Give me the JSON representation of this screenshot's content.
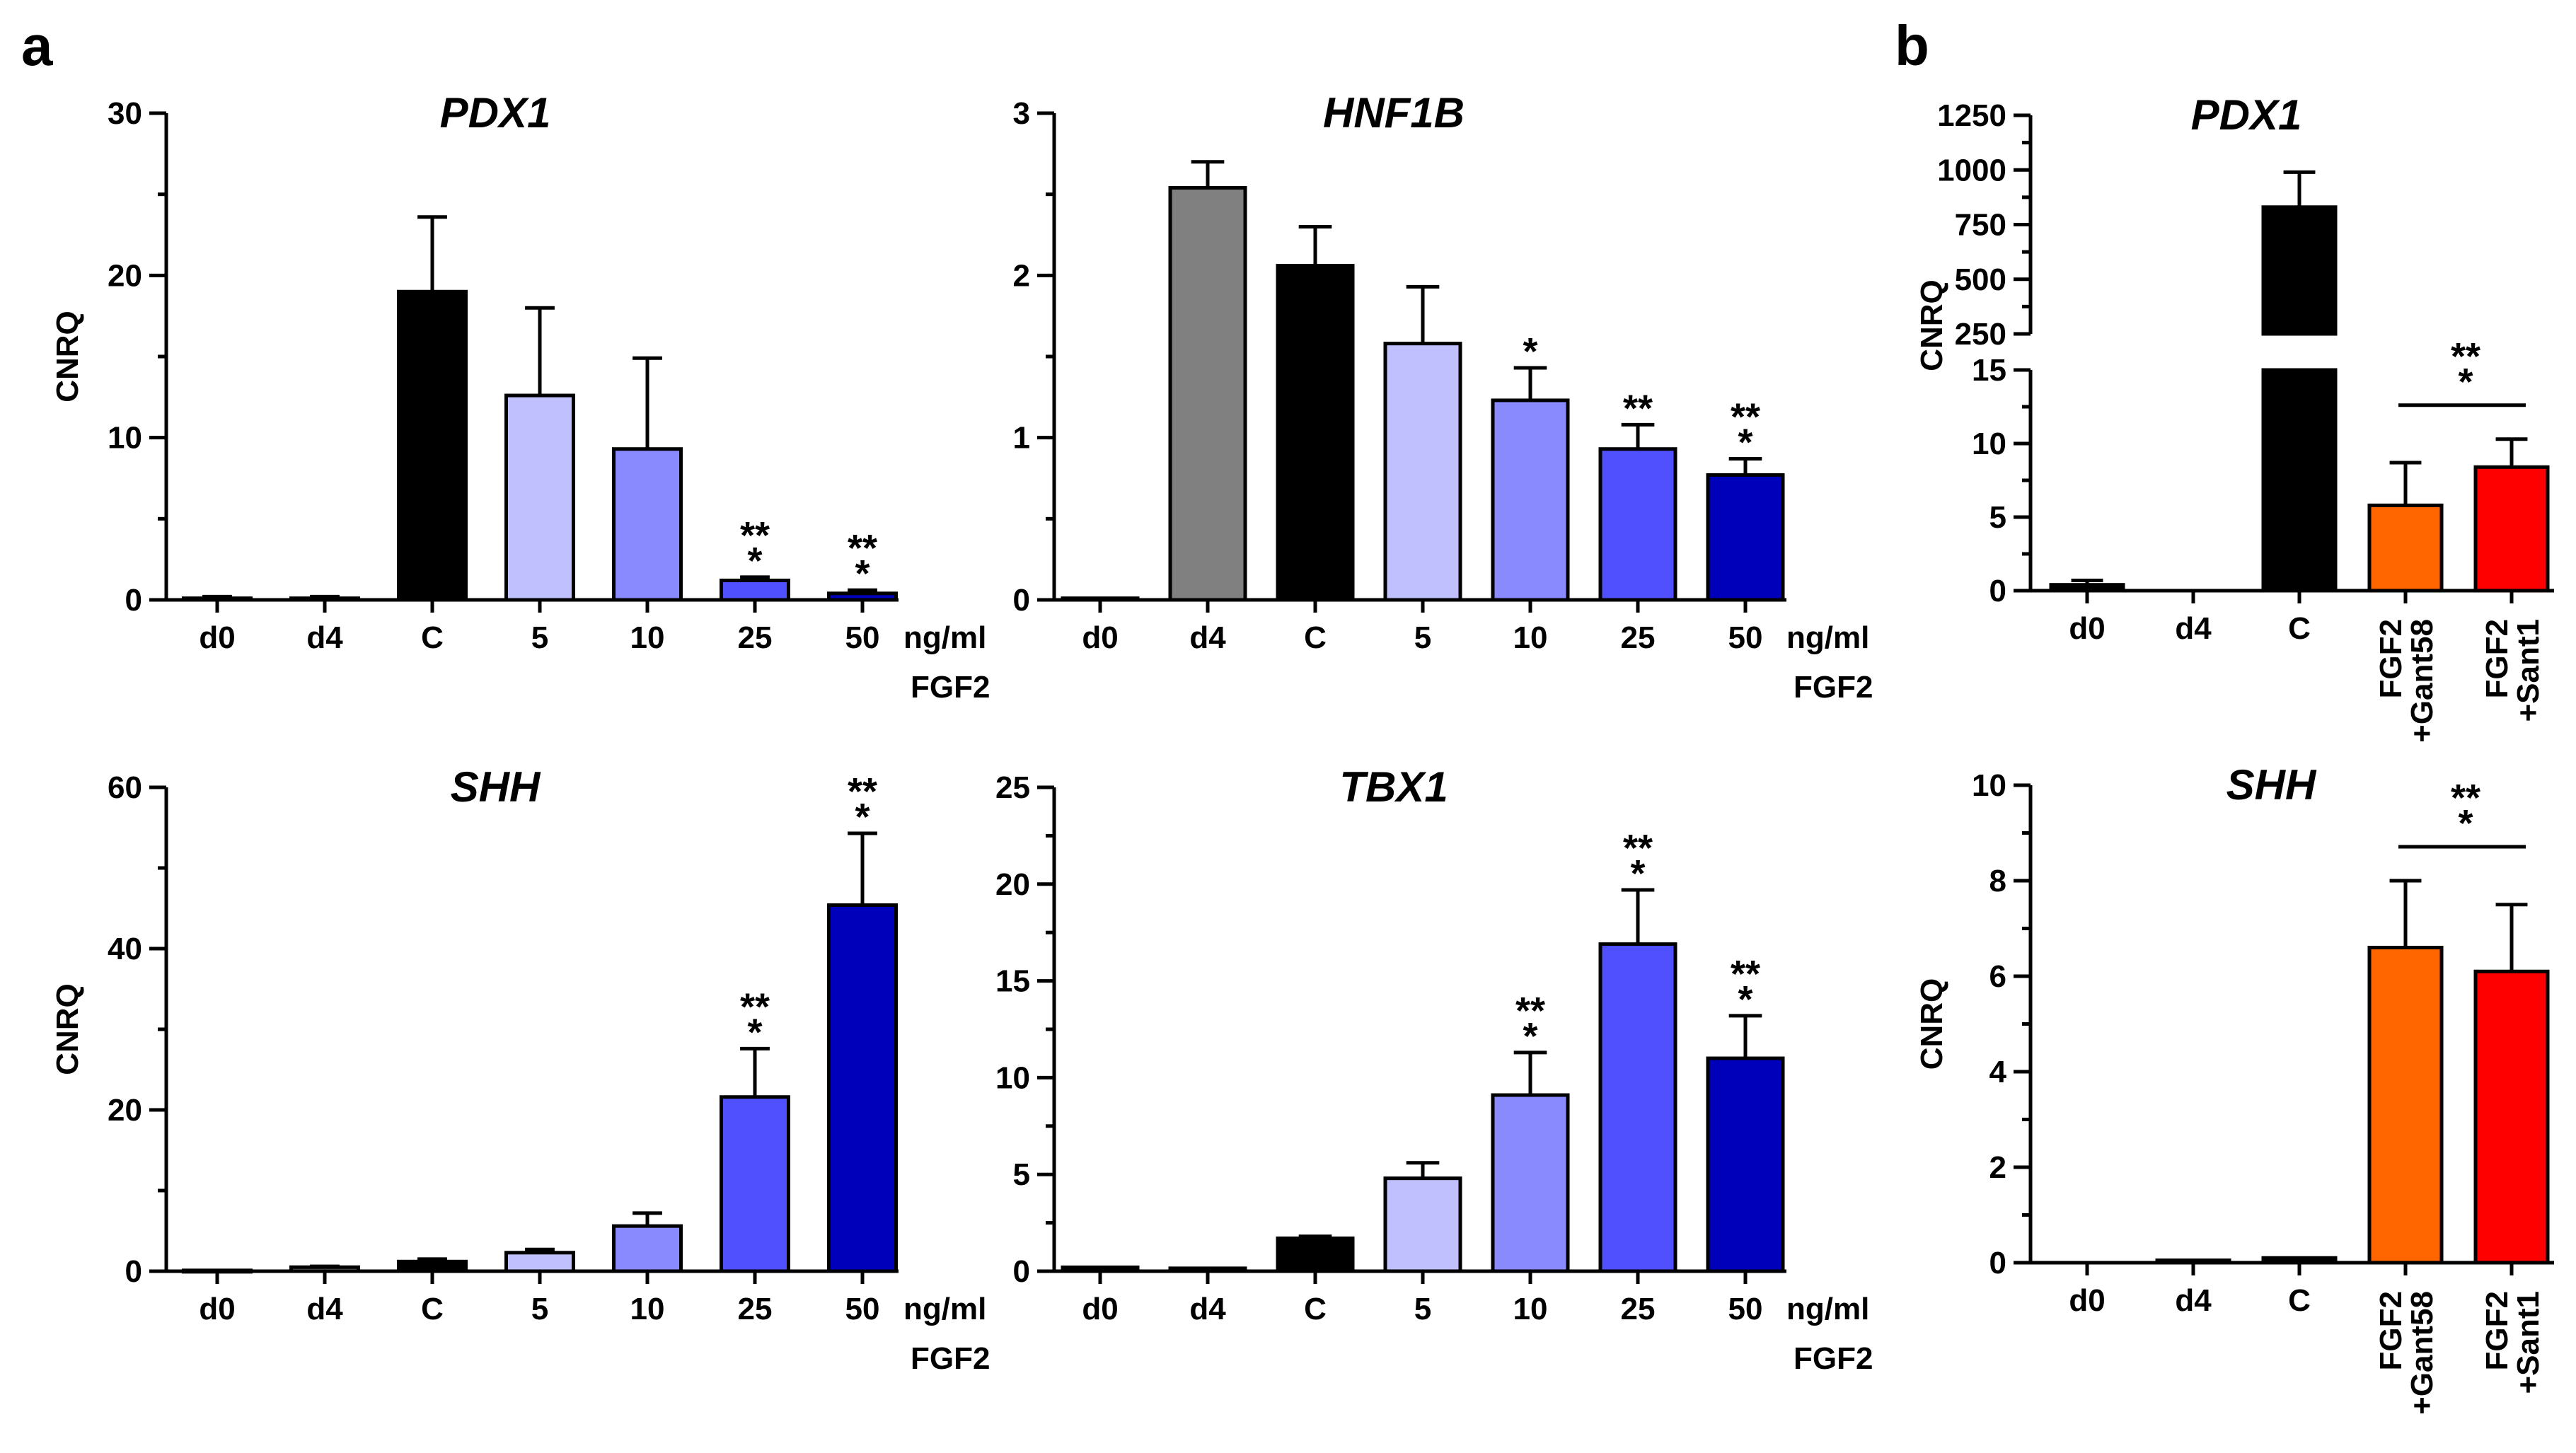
{
  "panel_labels": [
    "a",
    "b"
  ],
  "colors": {
    "d0": "#000000",
    "d4": "#808080",
    "C": "#000000",
    "5": "#c0c0ff",
    "10": "#8a8aff",
    "25": "#5050ff",
    "50": "#0000bb",
    "Gant58": "#ff6600",
    "Sant1": "#ff0000"
  },
  "chart_data": [
    {
      "type": "bar",
      "panel": "a",
      "title": "PDX1",
      "ylabel": "CNRQ",
      "categories": [
        "d0",
        "d4",
        "C",
        "5",
        "10",
        "25",
        "50"
      ],
      "unit_label": [
        "ng/ml",
        "FGF2"
      ],
      "values": [
        0.1,
        0.1,
        19.0,
        12.6,
        9.3,
        1.2,
        0.4
      ],
      "errors": [
        0.1,
        0.1,
        4.6,
        5.4,
        5.6,
        0.2,
        0.2
      ],
      "significance": [
        "",
        "",
        "",
        "",
        "",
        "***",
        "***"
      ],
      "ylim": [
        0,
        30
      ],
      "yticks": [
        0,
        10,
        20,
        30
      ]
    },
    {
      "type": "bar",
      "panel": "a",
      "title": "HNF1B",
      "ylabel": "",
      "categories": [
        "d0",
        "d4",
        "C",
        "5",
        "10",
        "25",
        "50"
      ],
      "unit_label": [
        "ng/ml",
        "FGF2"
      ],
      "values": [
        0.01,
        2.54,
        2.06,
        1.58,
        1.23,
        0.93,
        0.77
      ],
      "errors": [
        0.0,
        0.16,
        0.24,
        0.35,
        0.2,
        0.15,
        0.1
      ],
      "significance": [
        "",
        "",
        "",
        "",
        "*",
        "**",
        "***"
      ],
      "ylim": [
        0,
        3
      ],
      "yticks": [
        0,
        1,
        2,
        3
      ]
    },
    {
      "type": "bar",
      "panel": "a",
      "title": "SHH",
      "ylabel": "CNRQ",
      "categories": [
        "d0",
        "d4",
        "C",
        "5",
        "10",
        "25",
        "50"
      ],
      "unit_label": [
        "ng/ml",
        "FGF2"
      ],
      "values": [
        0.1,
        0.5,
        1.2,
        2.3,
        5.6,
        21.6,
        45.4
      ],
      "errors": [
        0.0,
        0.1,
        0.3,
        0.4,
        1.6,
        6.0,
        8.9
      ],
      "significance": [
        "",
        "",
        "",
        "",
        "",
        "***",
        "***"
      ],
      "ylim": [
        0,
        60
      ],
      "yticks": [
        0,
        20,
        40,
        60
      ]
    },
    {
      "type": "bar",
      "panel": "a",
      "title": "TBX1",
      "ylabel": "",
      "categories": [
        "d0",
        "d4",
        "C",
        "5",
        "10",
        "25",
        "50"
      ],
      "unit_label": [
        "ng/ml",
        "FGF2"
      ],
      "values": [
        0.2,
        0.15,
        1.7,
        4.8,
        9.1,
        16.9,
        11.0
      ],
      "errors": [
        0.0,
        0.0,
        0.1,
        0.8,
        2.2,
        2.8,
        2.2
      ],
      "significance": [
        "",
        "",
        "",
        "",
        "***",
        "***",
        "***"
      ],
      "ylim": [
        0,
        25
      ],
      "yticks": [
        0,
        5,
        10,
        15,
        20,
        25
      ]
    },
    {
      "type": "bar",
      "panel": "b",
      "title": "PDX1",
      "ylabel": "CNRQ",
      "categories": [
        "d0",
        "d4",
        "C",
        "FGF2\n+Gant58",
        "FGF2\n+Sant1"
      ],
      "values": [
        0.4,
        0.0,
        830,
        5.8,
        8.4
      ],
      "errors": [
        0.3,
        0.0,
        160,
        2.9,
        1.9
      ],
      "broken_axis": {
        "lower_range": [
          0,
          15
        ],
        "upper_range": [
          250,
          1250
        ]
      },
      "yticks_lower": [
        0,
        5,
        10,
        15
      ],
      "yticks_upper": [
        250,
        500,
        750,
        1000,
        1250
      ],
      "comparison": {
        "between": [
          "FGF2\n+Gant58",
          "FGF2\n+Sant1"
        ],
        "label": "***"
      }
    },
    {
      "type": "bar",
      "panel": "b",
      "title": "SHH",
      "ylabel": "CNRQ",
      "categories": [
        "d0",
        "d4",
        "C",
        "FGF2\n+Gant58",
        "FGF2\n+Sant1"
      ],
      "values": [
        0.0,
        0.05,
        0.1,
        6.6,
        6.1
      ],
      "errors": [
        0.0,
        0.0,
        0.0,
        1.4,
        1.4
      ],
      "ylim": [
        0,
        10
      ],
      "yticks": [
        0,
        2,
        4,
        6,
        8,
        10
      ],
      "comparison": {
        "between": [
          "FGF2\n+Gant58",
          "FGF2\n+Sant1"
        ],
        "label": "***"
      }
    }
  ]
}
